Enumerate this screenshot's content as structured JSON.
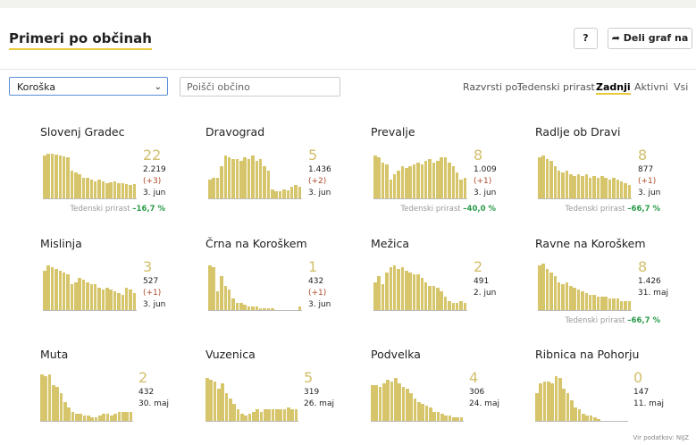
{
  "header": {
    "title": "Primeri po občinah",
    "help": "?",
    "share": "Deli graf na"
  },
  "filters": {
    "region": "Koroška",
    "search_placeholder": "Poišči občino",
    "sort_label": "Razvrsti po:",
    "sort_options": [
      "Tedenski prirast",
      "Zadnji",
      "Aktivni",
      "Vsi"
    ],
    "active_sort": 1
  },
  "growth_label": "Tedenski prirast",
  "municipalities": [
    {
      "name": "Slovenj Gradec",
      "count": "22",
      "total": "2.219",
      "delta": "(+3)",
      "date": "3. jun",
      "growth": "–16,7 %",
      "bars": [
        46,
        48,
        48,
        47,
        46,
        45,
        44,
        30,
        28,
        26,
        22,
        22,
        20,
        18,
        20,
        18,
        16,
        17,
        18,
        16,
        16,
        15,
        14,
        15
      ]
    },
    {
      "name": "Dravograd",
      "count": "5",
      "total": "1.436",
      "delta": "(+2)",
      "date": "3. jun",
      "bars": [
        20,
        22,
        22,
        34,
        46,
        44,
        42,
        42,
        40,
        44,
        42,
        46,
        40,
        42,
        34,
        30,
        10,
        8,
        8,
        10,
        9,
        12,
        14,
        12
      ]
    },
    {
      "name": "Prevalje",
      "count": "8",
      "total": "1.009",
      "delta": "(+1)",
      "date": "3. jun",
      "growth": "–40,0 %",
      "bars": [
        46,
        44,
        38,
        36,
        20,
        26,
        30,
        34,
        32,
        34,
        36,
        38,
        36,
        40,
        42,
        38,
        40,
        44,
        44,
        38,
        34,
        28,
        20,
        22
      ]
    },
    {
      "name": "Radlje ob Dravi",
      "count": "8",
      "total": "877",
      "delta": "(+1)",
      "date": "3. jun",
      "growth": "–66,7 %",
      "bars": [
        44,
        46,
        42,
        40,
        34,
        30,
        28,
        30,
        26,
        24,
        26,
        24,
        26,
        22,
        24,
        22,
        24,
        22,
        20,
        22,
        20,
        18,
        16,
        14
      ]
    },
    {
      "name": "Mislinja",
      "count": "3",
      "total": "527",
      "delta": "(+1)",
      "date": "3. jun",
      "bars": [
        42,
        48,
        46,
        44,
        42,
        40,
        38,
        28,
        30,
        34,
        32,
        30,
        28,
        28,
        24,
        22,
        24,
        22,
        20,
        18,
        16,
        24,
        22,
        18
      ]
    },
    {
      "name": "Črna na Koroškem",
      "count": "1",
      "total": "432",
      "delta": "(+1)",
      "date": "3. jun",
      "bars": [
        48,
        46,
        20,
        36,
        26,
        22,
        12,
        8,
        8,
        6,
        4,
        4,
        4,
        2,
        2,
        2,
        2,
        0,
        0,
        0,
        0,
        0,
        0,
        4
      ]
    },
    {
      "name": "Mežica",
      "count": "2",
      "total": "491",
      "date": "2. jun",
      "bars": [
        30,
        36,
        28,
        40,
        46,
        48,
        44,
        46,
        42,
        40,
        38,
        38,
        34,
        30,
        26,
        26,
        24,
        20,
        14,
        10,
        8,
        8,
        10,
        8
      ]
    },
    {
      "name": "Ravne na Koroškem",
      "count": "8",
      "total": "1.426",
      "date": "31. maj",
      "growth": "–66,7 %",
      "bars": [
        48,
        50,
        44,
        40,
        36,
        30,
        28,
        30,
        26,
        24,
        22,
        20,
        18,
        16,
        16,
        14,
        14,
        14,
        12,
        12,
        12,
        10,
        10,
        10
      ]
    },
    {
      "name": "Muta",
      "count": "2",
      "total": "432",
      "date": "30. maj",
      "bars": [
        50,
        48,
        50,
        38,
        36,
        30,
        20,
        14,
        10,
        8,
        8,
        6,
        6,
        4,
        4,
        6,
        8,
        8,
        6,
        8,
        10,
        10,
        10,
        10
      ]
    },
    {
      "name": "Vuzenica",
      "count": "5",
      "total": "319",
      "date": "26. maj",
      "bars": [
        46,
        44,
        42,
        34,
        40,
        30,
        24,
        18,
        12,
        8,
        6,
        8,
        10,
        12,
        10,
        12,
        12,
        12,
        12,
        12,
        12,
        14,
        12,
        12
      ]
    },
    {
      "name": "Podvelka",
      "count": "4",
      "total": "306",
      "date": "24. maj",
      "bars": [
        38,
        38,
        36,
        40,
        44,
        42,
        46,
        40,
        36,
        34,
        30,
        24,
        20,
        18,
        16,
        14,
        10,
        10,
        8,
        6,
        6,
        4,
        4,
        4
      ]
    },
    {
      "name": "Ribnica na Pohorju",
      "count": "0",
      "total": "147",
      "date": "11. maj",
      "bars": [
        30,
        40,
        42,
        42,
        40,
        48,
        46,
        34,
        30,
        22,
        14,
        12,
        8,
        6,
        6,
        4,
        2,
        0,
        0,
        0,
        0,
        0,
        0,
        0
      ]
    }
  ],
  "footer": "Vir podatkov: NIJZ"
}
